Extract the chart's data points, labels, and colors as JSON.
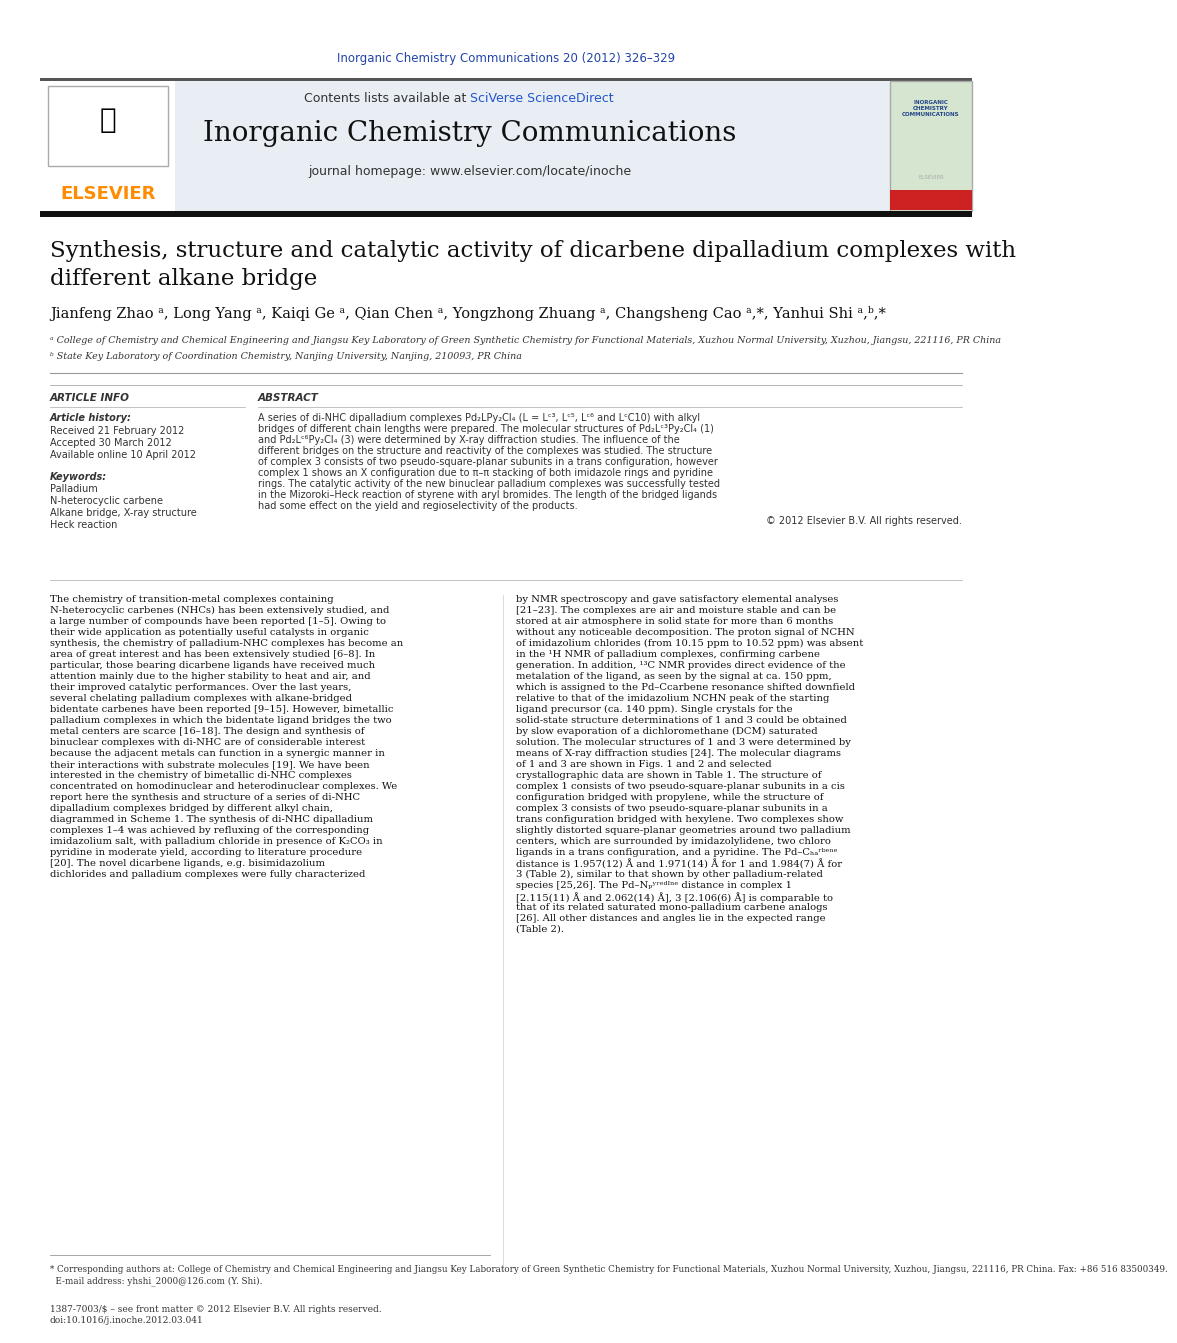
{
  "page_bg": "#ffffff",
  "top_citation": "Inorganic Chemistry Communications 20 (2012) 326–329",
  "top_citation_color": "#2244aa",
  "header_bg": "#e8eef4",
  "header_contents": "Contents lists available at ",
  "sciverse_text": "SciVerse ScienceDirect",
  "sciverse_color": "#2255cc",
  "journal_title": "Inorganic Chemistry Communications",
  "journal_homepage": "journal homepage: www.elsevier.com/locate/inoche",
  "article_title_line1": "Synthesis, structure and catalytic activity of dicarbene dipalladium complexes with",
  "article_title_line2": "different alkane bridge",
  "authors": "Jianfeng Zhao ᵃ, Long Yang ᵃ, Kaiqi Ge ᵃ, Qian Chen ᵃ, Yongzhong Zhuang ᵃ, Changsheng Cao ᵃ,*, Yanhui Shi ᵃ,ᵇ,*",
  "affil_a": "ᵃ College of Chemistry and Chemical Engineering and Jiangsu Key Laboratory of Green Synthetic Chemistry for Functional Materials, Xuzhou Normal University, Xuzhou, Jiangsu, 221116, PR China",
  "affil_b": "ᵇ State Key Laboratory of Coordination Chemistry, Nanjing University, Nanjing, 210093, PR China",
  "article_info_title": "ARTICLE INFO",
  "article_history_title": "Article history:",
  "received": "Received 21 February 2012",
  "accepted": "Accepted 30 March 2012",
  "available": "Available online 10 April 2012",
  "keywords_title": "Keywords:",
  "keywords": [
    "Palladium",
    "N-heterocyclic carbene",
    "Alkane bridge, X-ray structure",
    "Heck reaction"
  ],
  "abstract_title": "ABSTRACT",
  "abstract_text": "A series of di-NHC dipalladium complexes Pd₂LPy₂Cl₄ (L = Lᶜ³, Lᶜ⁵, Lᶜ⁶ and LᶜC10) with alkyl bridges of different chain lengths were prepared. The molecular structures of Pd₂Lᶜ³Py₂Cl₄ (1) and Pd₂Lᶜ⁶Py₂Cl₄ (3) were determined by X-ray diffraction studies. The influence of the different bridges on the structure and reactivity of the complexes was studied. The structure of complex 3 consists of two pseudo-square-planar subunits in a trans configuration, however complex 1 shows an X configuration due to π–π stacking of both imidazole rings and pyridine rings. The catalytic activity of the new binuclear palladium complexes was successfully tested in the Mizoroki–Heck reaction of styrene with aryl bromides. The length of the bridged ligands had some effect on the yield and regioselectivity of the products.",
  "copyright": "© 2012 Elsevier B.V. All rights reserved.",
  "main_col1_text": "The chemistry of transition-metal complexes containing N-heterocyclic carbenes (NHCs) has been extensively studied, and a large number of compounds have been reported [1–5]. Owing to their wide application as potentially useful catalysts in organic synthesis, the chemistry of palladium-NHC complexes has become an area of great interest and has been extensively studied [6–8]. In particular, those bearing dicarbene ligands have received much attention mainly due to the higher stability to heat and air, and their improved catalytic performances. Over the last years, several chelating palladium complexes with alkane-bridged bidentate carbenes have been reported [9–15]. However, bimetallic palladium complexes in which the bidentate ligand bridges the two metal centers are scarce [16–18]. The design and synthesis of binuclear complexes with di-NHC are of considerable interest because the adjacent metals can function in a synergic manner in their interactions with substrate molecules [19]. We have been interested in the chemistry of bimetallic di-NHC complexes concentrated on homodinuclear and heterodinuclear complexes. We report here the synthesis and structure of a series of di-NHC dipalladium complexes bridged by different alkyl chain, diagrammed in Scheme 1.\n\nThe synthesis of di-NHC dipalladium complexes 1–4 was achieved by refluxing of the corresponding imidazolium salt, with palladium chloride in presence of K₂CO₃ in pyridine in moderate yield, according to literature procedure [20]. The novel dicarbene ligands, e.g. bisimidazolium dichlorides and palladium complexes were fully characterized",
  "main_col2_text": "by NMR spectroscopy and gave satisfactory elemental analyses [21–23]. The complexes are air and moisture stable and can be stored at air atmosphere in solid state for more than 6 months without any noticeable decomposition.\n\nThe proton signal of NCHN of imidazolium chlorides (from 10.15 ppm to 10.52 ppm) was absent in the ¹H NMR of palladium complexes, confirming carbene generation. In addition, ¹³C NMR provides direct evidence of the metalation of the ligand, as seen by the signal at ca. 150 ppm, which is assigned to the Pd–Ccarbene resonance shifted downfield relative to that of the imidazolium NCHN peak of the starting ligand precursor (ca. 140 ppm).\n\nSingle crystals for the solid-state structure determinations of 1 and 3 could be obtained by slow evaporation of a dichloromethane (DCM) saturated solution. The molecular structures of 1 and 3 were determined by means of X-ray diffraction studies [24]. The molecular diagrams of 1 and 3 are shown in Figs. 1 and 2 and selected crystallographic data are shown in Table 1. The structure of complex 1 consists of two pseudo-square-planar subunits in a cis configuration bridged with propylene, while the structure of complex 3 consists of two pseudo-square-planar subunits in a trans configuration bridged with hexylene. Two complexes show slightly distorted square-planar geometries around two palladium centers, which are surrounded by imidazolylidene, two chloro ligands in a trans configuration, and a pyridine. The Pd–Cₕₐʳᵇᵉⁿᵉ distance is 1.957(12) Å and 1.971(14) Å for 1 and 1.984(7) Å for 3 (Table 2), similar to that shown by other palladium-related species [25,26]. The Pd–Nₚʸʳᵉᵈᴵⁿᵉ distance in complex 1 [2.115(11) Å and 2.062(14) Å], 3 [2.106(6) Å] is comparable to that of its related saturated mono-palladium carbene analogs [26]. All other distances and angles lie in the expected range (Table 2).",
  "footer_note": "* Corresponding authors at: College of Chemistry and Chemical Engineering and Jiangsu Key Laboratory of Green Synthetic Chemistry for Functional Materials, Xuzhou Normal University, Xuzhou, Jiangsu, 221116, PR China. Fax: +86 516 83500349.\n  E-mail address: yhshi_2000@126.com (Y. Shi).",
  "footer_issn": "1387-7003/$ – see front matter © 2012 Elsevier B.V. All rights reserved.",
  "footer_doi": "doi:10.1016/j.inoche.2012.03.041",
  "divider_color": "#333333",
  "dark_bar_color": "#1a1a1a",
  "light_bar_color": "#555555"
}
